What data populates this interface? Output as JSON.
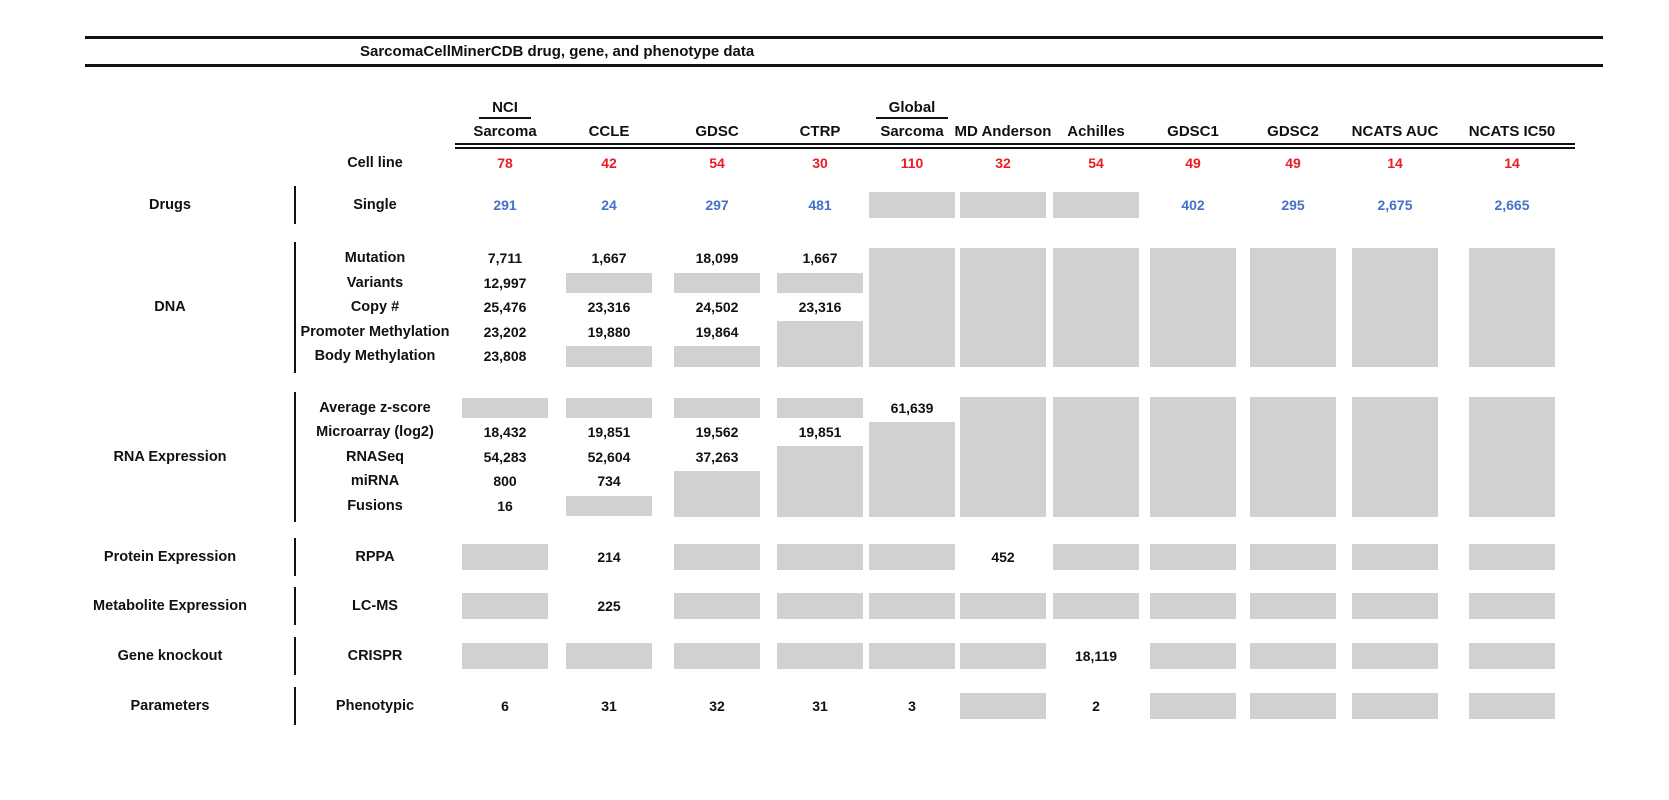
{
  "chart_data": {
    "type": "table",
    "title": "SarcomaCellMinerCDB drug, gene, and phenotype data",
    "na_token_meaning": "NA = gray box (data not available); NAn = gray box spanning n rows; empty string = covered by a spanning gray box",
    "colors": {
      "red": "#ed1c24",
      "blue": "#4472c4",
      "gray": "#d1d1d1"
    },
    "columns": [
      {
        "top": "NCI",
        "name": "Sarcoma"
      },
      {
        "name": "CCLE"
      },
      {
        "name": "GDSC"
      },
      {
        "name": "CTRP"
      },
      {
        "top": "Global",
        "name": "Sarcoma"
      },
      {
        "name": "MD Anderson"
      },
      {
        "name": "Achilles"
      },
      {
        "name": "GDSC1"
      },
      {
        "name": "GDSC2"
      },
      {
        "name": "NCATS AUC"
      },
      {
        "name": "NCATS IC50"
      }
    ],
    "cell_line_row": {
      "label": "Cell line",
      "color": "red",
      "values": [
        "78",
        "42",
        "54",
        "30",
        "110",
        "32",
        "54",
        "49",
        "49",
        "14",
        "14"
      ]
    },
    "sections": [
      {
        "category": "Drugs",
        "rows": [
          {
            "label": "Single",
            "color": "blue",
            "cells": [
              "291",
              "24",
              "297",
              "481",
              "NA",
              "NA",
              "NA",
              "402",
              "295",
              "2,675",
              "2,665"
            ]
          }
        ]
      },
      {
        "category": "DNA",
        "rows": [
          {
            "label": "Mutation",
            "cells": [
              "7,711",
              "1,667",
              "18,099",
              "1,667",
              "NA5",
              "NA5",
              "NA5",
              "NA5",
              "NA5",
              "NA5",
              "NA5"
            ]
          },
          {
            "label": "Variants",
            "cells": [
              "12,997",
              "NA",
              "NA",
              "NA",
              "",
              "",
              "",
              "",
              "",
              "",
              ""
            ]
          },
          {
            "label": "Copy #",
            "cells": [
              "25,476",
              "23,316",
              "24,502",
              "23,316",
              "",
              "",
              "",
              "",
              "",
              "",
              ""
            ]
          },
          {
            "label": "Promoter Methylation",
            "cells": [
              "23,202",
              "19,880",
              "19,864",
              "NA2",
              "",
              "",
              "",
              "",
              "",
              "",
              ""
            ]
          },
          {
            "label": "Body Methylation",
            "cells": [
              "23,808",
              "NA",
              "NA",
              "",
              "",
              "",
              "",
              "",
              "",
              "",
              ""
            ]
          }
        ]
      },
      {
        "category": "RNA Expression",
        "rows": [
          {
            "label": "Average z-score",
            "cells": [
              "NA",
              "NA",
              "NA",
              "NA",
              "61,639",
              "NA5",
              "NA5",
              "NA5",
              "NA5",
              "NA5",
              "NA5"
            ]
          },
          {
            "label": "Microarray (log2)",
            "cells": [
              "18,432",
              "19,851",
              "19,562",
              "19,851",
              "NA4",
              "",
              "",
              "",
              "",
              "",
              ""
            ]
          },
          {
            "label": "RNASeq",
            "cells": [
              "54,283",
              "52,604",
              "37,263",
              "NA3",
              "",
              "",
              "",
              "",
              "",
              "",
              ""
            ]
          },
          {
            "label": "miRNA",
            "cells": [
              "800",
              "734",
              "NA2",
              "",
              "",
              "",
              "",
              "",
              "",
              "",
              ""
            ]
          },
          {
            "label": "Fusions",
            "cells": [
              "16",
              "NA",
              "",
              "",
              "",
              "",
              "",
              "",
              "",
              "",
              ""
            ]
          }
        ]
      },
      {
        "category": "Protein Expression",
        "rows": [
          {
            "label": "RPPA",
            "cells": [
              "NA",
              "214",
              "NA",
              "NA",
              "NA",
              "452",
              "NA",
              "NA",
              "NA",
              "NA",
              "NA"
            ]
          }
        ]
      },
      {
        "category": "Metabolite Expression",
        "rows": [
          {
            "label": "LC-MS",
            "cells": [
              "NA",
              "225",
              "NA",
              "NA",
              "NA",
              "NA",
              "NA",
              "NA",
              "NA",
              "NA",
              "NA"
            ]
          }
        ]
      },
      {
        "category": "Gene knockout",
        "rows": [
          {
            "label": "CRISPR",
            "cells": [
              "NA",
              "NA",
              "NA",
              "NA",
              "NA",
              "NA",
              "18,119",
              "NA",
              "NA",
              "NA",
              "NA"
            ]
          }
        ]
      },
      {
        "category": "Parameters",
        "rows": [
          {
            "label": "Phenotypic",
            "cells": [
              "6",
              "31",
              "32",
              "31",
              "3",
              "NA",
              "2",
              "NA",
              "NA",
              "NA",
              "NA"
            ]
          }
        ]
      }
    ]
  }
}
